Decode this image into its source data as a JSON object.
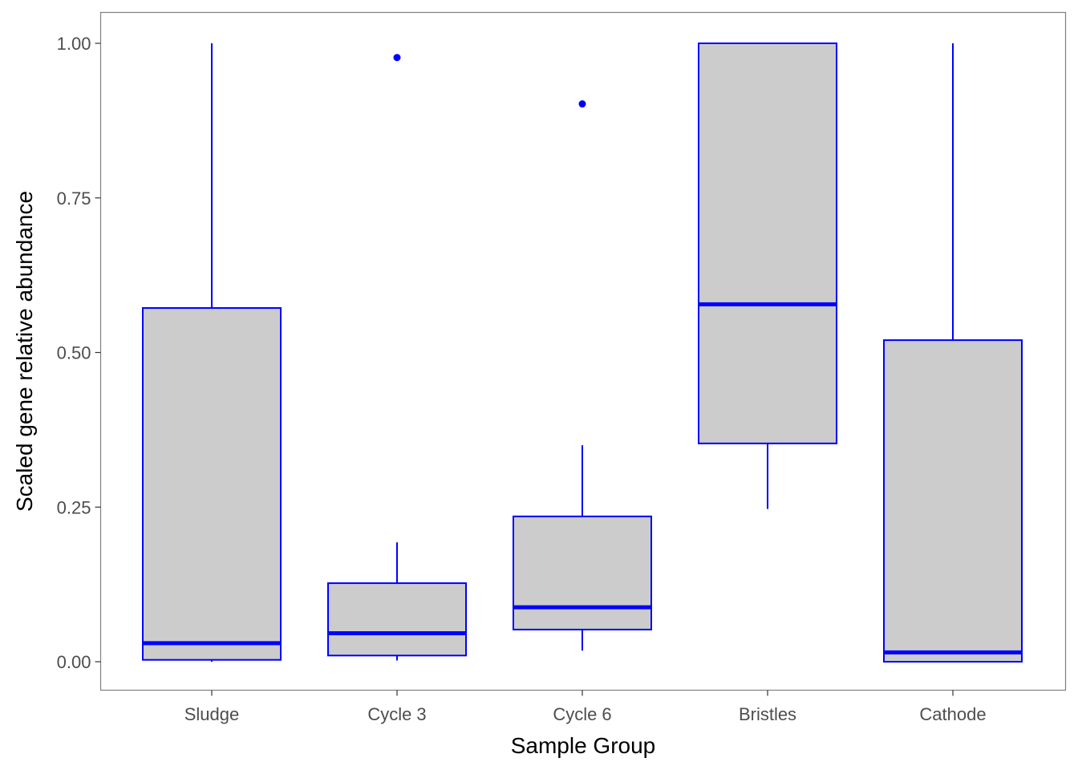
{
  "chart_data": {
    "type": "box",
    "title": "",
    "xlabel": "Sample Group",
    "ylabel": "Scaled gene relative abundance",
    "categories": [
      "Sludge",
      "Cycle 3",
      "Cycle 6",
      "Bristles",
      "Cathode"
    ],
    "boxes": [
      {
        "category": "Sludge",
        "whisker_low": 0.0,
        "q1": 0.003,
        "median": 0.03,
        "q3": 0.572,
        "whisker_high": 1.0,
        "outliers": []
      },
      {
        "category": "Cycle 3",
        "whisker_low": 0.002,
        "q1": 0.01,
        "median": 0.046,
        "q3": 0.127,
        "whisker_high": 0.193,
        "outliers": [
          0.977
        ]
      },
      {
        "category": "Cycle 6",
        "whisker_low": 0.018,
        "q1": 0.052,
        "median": 0.088,
        "q3": 0.235,
        "whisker_high": 0.35,
        "outliers": [
          0.902
        ]
      },
      {
        "category": "Bristles",
        "whisker_low": 0.247,
        "q1": 0.353,
        "median": 0.578,
        "q3": 1.0,
        "whisker_high": 1.0,
        "outliers": []
      },
      {
        "category": "Cathode",
        "whisker_low": 0.0,
        "q1": 0.0,
        "median": 0.015,
        "q3": 0.52,
        "whisker_high": 1.0,
        "outliers": []
      }
    ],
    "ylim": [
      -0.05,
      1.05
    ],
    "yticks": [
      0.0,
      0.25,
      0.5,
      0.75,
      1.0
    ],
    "ytick_labels": [
      "0.00",
      "0.25",
      "0.50",
      "0.75",
      "1.00"
    ],
    "grid": false,
    "legend": "none",
    "colors": {
      "box_fill": "#cccccc",
      "box_stroke": "#0000ff",
      "panel_border": "#7f7f7f",
      "tick_text": "#4d4d4d"
    }
  }
}
